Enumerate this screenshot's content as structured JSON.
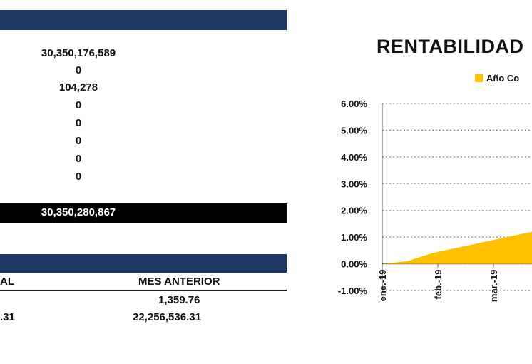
{
  "summary": {
    "values": [
      "30,350,176,589",
      "0",
      "104,278",
      "0",
      "0",
      "0",
      "0",
      "0"
    ],
    "total": "30,350,280,867"
  },
  "table": {
    "headers": [
      "AL",
      "MES ANTERIOR"
    ],
    "rows": [
      [
        "",
        "1,359.76"
      ],
      [
        ".31",
        "22,256,536.31"
      ]
    ]
  },
  "colors": {
    "header_band": "#1f3864",
    "total_bar": "#000000",
    "series_fill": "#ffc000"
  },
  "chart_data": {
    "type": "area",
    "title": "RENTABILIDAD",
    "legend": [
      "Año Co"
    ],
    "legend_position": "top-right",
    "y_ticks": [
      "6.00%",
      "5.00%",
      "4.00%",
      "3.00%",
      "2.00%",
      "1.00%",
      "0.00%",
      "-1.00%"
    ],
    "ylim": [
      -1.0,
      6.0
    ],
    "x_ticks": [
      "ene.-19",
      "feb.-19",
      "mar.-19"
    ],
    "grid": "horizontal-dotted",
    "series": [
      {
        "name": "Año Co",
        "points": [
          [
            "ene.-19",
            0.0
          ],
          [
            "ene.-19",
            0.1
          ],
          [
            "feb.-19",
            0.4
          ],
          [
            "feb.-19",
            0.6
          ],
          [
            "mar.-19",
            0.8
          ],
          [
            "mar.-19",
            1.0
          ],
          [
            "mar.-19",
            1.2
          ]
        ]
      }
    ]
  }
}
